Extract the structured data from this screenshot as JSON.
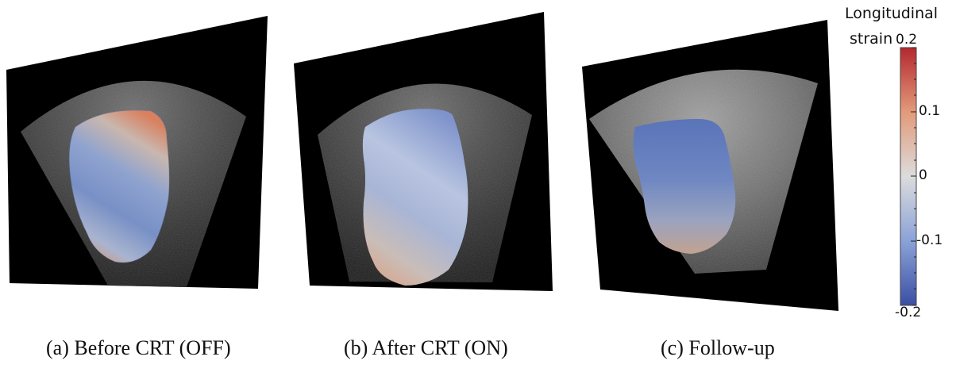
{
  "figure": {
    "panels": [
      {
        "caption": "(a) Before CRT (OFF)"
      },
      {
        "caption": "(b) After CRT (ON)"
      },
      {
        "caption": "(c) Follow-up"
      }
    ],
    "colorbar": {
      "title_line1": "Longitudinal",
      "title_line2": "strain",
      "max_label": "0.2",
      "tick_01": "0.1",
      "tick_0": "0",
      "tick_m01": "-0.1",
      "min_label": "-0.2",
      "colors": {
        "high": "#b4282f",
        "mid": "#dcdcdc",
        "low": "#3b4fa3"
      }
    }
  }
}
